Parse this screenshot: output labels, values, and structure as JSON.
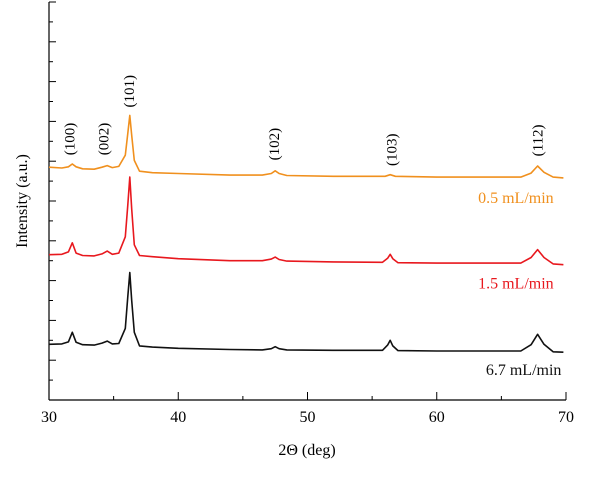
{
  "chart_data": {
    "type": "line",
    "xlabel": "2Θ (deg)",
    "ylabel": "Intensity (a.u.)",
    "xlim": [
      30,
      70
    ],
    "xticks": [
      "30",
      "40",
      "50",
      "60",
      "70"
    ],
    "ylim": [
      0,
      100
    ],
    "grid": false,
    "series": [
      {
        "name": "0.5 mL/min",
        "color": "#f0901e",
        "label_pos": [
          63.2,
          49.5
        ],
        "x": [
          30.0,
          31.0,
          31.5,
          31.8,
          32.1,
          32.6,
          33.5,
          34.1,
          34.5,
          34.9,
          35.4,
          35.9,
          36.1,
          36.25,
          36.4,
          36.6,
          37.0,
          38.0,
          40.0,
          44.0,
          46.5,
          47.2,
          47.5,
          47.8,
          48.4,
          52.0,
          56.0,
          56.4,
          56.8,
          60.0,
          64.0,
          66.5,
          67.3,
          67.8,
          68.3,
          69.0,
          69.8
        ],
        "y": [
          58.5,
          58.3,
          58.6,
          59.3,
          58.6,
          58.1,
          58.0,
          58.5,
          58.9,
          58.4,
          58.7,
          61.5,
          67.0,
          71.5,
          66.5,
          60.2,
          57.5,
          57.1,
          56.9,
          56.5,
          56.5,
          56.9,
          57.6,
          56.9,
          56.4,
          56.2,
          56.2,
          56.6,
          56.2,
          56.0,
          56.0,
          56.0,
          57.0,
          58.8,
          57.2,
          56.0,
          55.8
        ]
      },
      {
        "name": "1.5 mL/min",
        "color": "#e8181e",
        "label_pos": [
          63.2,
          28.0
        ],
        "x": [
          30.0,
          31.0,
          31.5,
          31.8,
          32.1,
          32.6,
          33.5,
          34.1,
          34.5,
          34.9,
          35.4,
          35.9,
          36.1,
          36.25,
          36.4,
          36.6,
          37.0,
          38.0,
          40.0,
          44.0,
          46.5,
          47.2,
          47.5,
          47.8,
          48.4,
          52.0,
          55.8,
          56.2,
          56.4,
          56.6,
          57.0,
          60.0,
          64.0,
          66.5,
          67.3,
          67.8,
          68.3,
          69.0,
          69.8
        ],
        "y": [
          36.5,
          36.6,
          37.2,
          39.5,
          36.9,
          36.3,
          36.2,
          36.7,
          37.4,
          36.6,
          36.9,
          41.0,
          49.0,
          56.0,
          48.0,
          39.0,
          36.3,
          36.0,
          35.5,
          35.0,
          35.0,
          35.4,
          35.9,
          35.3,
          34.9,
          34.7,
          34.6,
          35.6,
          36.6,
          35.5,
          34.5,
          34.4,
          34.4,
          34.4,
          35.8,
          37.8,
          35.8,
          34.2,
          34.0
        ]
      },
      {
        "name": "6.7 mL/min",
        "color": "#111111",
        "label_pos": [
          63.8,
          6.3
        ],
        "x": [
          30.0,
          31.0,
          31.5,
          31.8,
          32.1,
          32.6,
          33.5,
          34.1,
          34.5,
          34.9,
          35.4,
          35.9,
          36.1,
          36.25,
          36.4,
          36.6,
          37.0,
          38.0,
          40.0,
          44.0,
          46.5,
          47.2,
          47.5,
          47.8,
          48.4,
          52.0,
          55.8,
          56.2,
          56.4,
          56.6,
          57.0,
          60.0,
          64.0,
          66.5,
          67.3,
          67.8,
          68.3,
          69.0,
          69.8
        ],
        "y": [
          14.0,
          14.1,
          14.6,
          17.0,
          14.5,
          13.9,
          13.8,
          14.3,
          14.8,
          14.1,
          14.2,
          18.0,
          26.0,
          32.0,
          25.0,
          17.0,
          13.6,
          13.3,
          13.0,
          12.7,
          12.6,
          12.9,
          13.4,
          12.9,
          12.6,
          12.5,
          12.5,
          13.8,
          15.0,
          13.6,
          12.4,
          12.3,
          12.3,
          12.3,
          13.9,
          16.5,
          14.0,
          12.1,
          12.0
        ]
      }
    ],
    "annotations": [
      {
        "text": "(100)",
        "x": 31.6,
        "y": 61.5
      },
      {
        "text": "(002)",
        "x": 34.2,
        "y": 61.5
      },
      {
        "text": "(101)",
        "x": 36.2,
        "y": 73.5
      },
      {
        "text": "(102)",
        "x": 47.4,
        "y": 60.2
      },
      {
        "text": "(103)",
        "x": 56.5,
        "y": 58.8
      },
      {
        "text": "(112)",
        "x": 67.8,
        "y": 61.2
      }
    ]
  }
}
